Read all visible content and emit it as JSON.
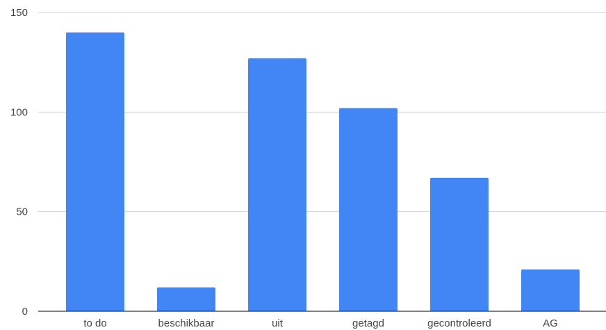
{
  "colors": {
    "bar": "#4285f4",
    "grid": "#d0d0d0",
    "axis": "#333333",
    "text": "#444444"
  },
  "chart_data": {
    "type": "bar",
    "title": "",
    "xlabel": "",
    "ylabel": "",
    "categories": [
      "to do",
      "beschikbaar",
      "uit",
      "getagd",
      "gecontroleerd",
      "AG"
    ],
    "values": [
      140,
      12,
      127,
      102,
      67,
      21
    ],
    "ylim": [
      0,
      150
    ],
    "yticks": [
      0,
      50,
      100,
      150
    ],
    "grid": true,
    "legend": "none"
  }
}
